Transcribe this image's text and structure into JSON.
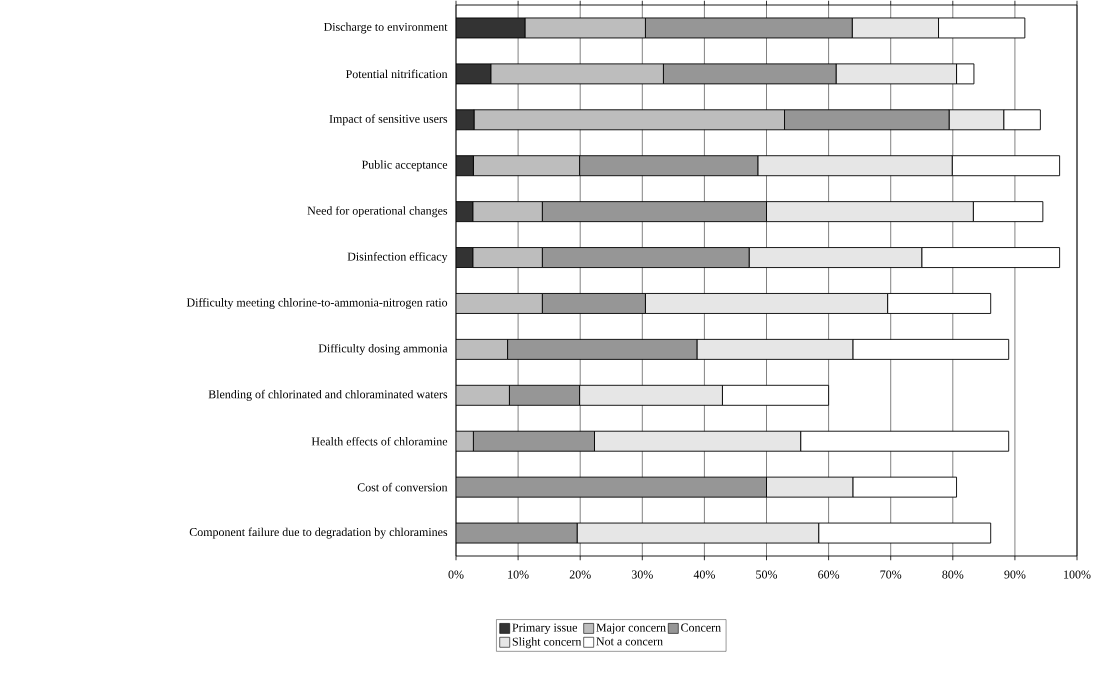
{
  "chart_data": {
    "type": "bar",
    "orientation": "horizontal",
    "stacked": true,
    "categories": [
      "Discharge to environment",
      "Potential nitrification",
      "Impact of sensitive users",
      "Public acceptance",
      "Need for operational changes",
      "Disinfection efficacy",
      "Difficulty meeting chlorine-to-ammonia-nitrogen ratio",
      "Difficulty dosing ammonia",
      "Blending of chlorinated and chloraminated waters",
      "Health effects of chloramine",
      "Cost of conversion",
      "Component failure due to degradation by chloramines"
    ],
    "series": [
      {
        "name": "Primary issue",
        "color": "#333333",
        "values": [
          11.1,
          5.6,
          2.9,
          2.8,
          2.7,
          2.7,
          0,
          0,
          0,
          0,
          0,
          0
        ]
      },
      {
        "name": "Major concern",
        "color": "#bdbdbd",
        "values": [
          19.4,
          27.8,
          50.0,
          17.1,
          11.2,
          11.2,
          13.9,
          8.3,
          8.6,
          2.8,
          0,
          0
        ]
      },
      {
        "name": "Concern",
        "color": "#969696",
        "values": [
          33.3,
          27.8,
          26.5,
          28.7,
          36.1,
          33.3,
          16.6,
          30.5,
          11.3,
          19.5,
          50.0,
          19.5
        ]
      },
      {
        "name": "Slight concern",
        "color": "#e6e6e6",
        "values": [
          13.9,
          19.4,
          8.8,
          31.3,
          33.3,
          27.8,
          39.0,
          25.1,
          23.0,
          33.2,
          13.9,
          38.9
        ]
      },
      {
        "name": "Not a concern",
        "color": "#ffffff",
        "values": [
          13.9,
          2.8,
          5.9,
          17.3,
          11.2,
          22.2,
          16.6,
          25.1,
          17.1,
          33.5,
          16.7,
          27.7
        ]
      }
    ],
    "xlim": [
      0,
      100
    ],
    "xticks": [
      {
        "value": 0,
        "label": "0%"
      },
      {
        "value": 10,
        "label": "10%"
      },
      {
        "value": 20,
        "label": "20%"
      },
      {
        "value": 30,
        "label": "30%"
      },
      {
        "value": 40,
        "label": "40%"
      },
      {
        "value": 50,
        "label": "50%"
      },
      {
        "value": 60,
        "label": "60%"
      },
      {
        "value": 70,
        "label": "70%"
      },
      {
        "value": 80,
        "label": "80%"
      },
      {
        "value": 90,
        "label": "90%"
      },
      {
        "value": 100,
        "label": "100%"
      }
    ],
    "grid": "x",
    "legend": "bottom"
  }
}
